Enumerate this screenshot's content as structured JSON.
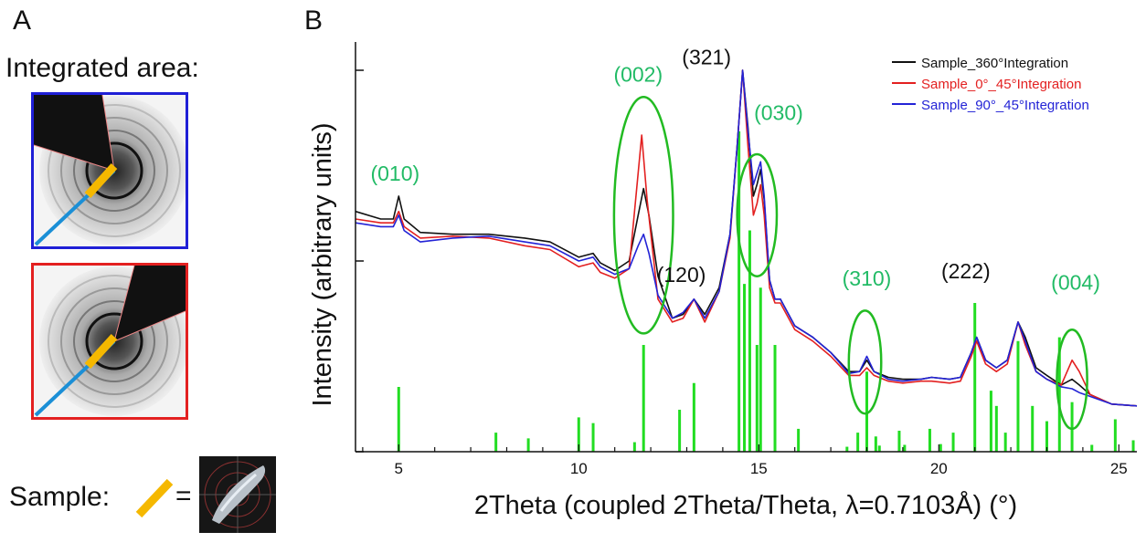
{
  "panel_a": {
    "letter": "A",
    "integrated_label": "Integrated area:",
    "sample_label": "Sample:",
    "equals": "=",
    "box_colors": {
      "top": "#1f1fd6",
      "bottom": "#e32020",
      "stick": "#f5b800",
      "beam": "#1b8fd6"
    }
  },
  "panel_b": {
    "letter": "B"
  },
  "chart_data": {
    "type": "line",
    "xlabel": "2Theta (coupled 2Theta/Theta, λ=0.7103Å) (°)",
    "ylabel": "Intensity (arbitrary units)",
    "xlim": [
      3.8,
      25.5
    ],
    "ylim": [
      0,
      100
    ],
    "x_ticks": [
      5,
      10,
      15,
      20,
      25
    ],
    "x_tick_labels": [
      "5",
      "10",
      "15",
      "20",
      "25"
    ],
    "grid": false,
    "legend_position": "top-right",
    "series": [
      {
        "name": "Sample_360°Integration",
        "color": "#111111",
        "x": [
          3.8,
          4.5,
          4.85,
          5.0,
          5.15,
          5.6,
          6.5,
          7.5,
          8.5,
          9.2,
          10.0,
          10.4,
          10.6,
          11.0,
          11.4,
          11.65,
          11.8,
          11.95,
          12.2,
          12.6,
          12.9,
          13.2,
          13.5,
          13.9,
          14.2,
          14.4,
          14.55,
          14.7,
          14.85,
          14.95,
          15.05,
          15.15,
          15.3,
          15.45,
          15.6,
          16.0,
          16.5,
          17.0,
          17.5,
          17.8,
          18.0,
          18.2,
          18.6,
          19.0,
          19.5,
          19.8,
          20.3,
          20.6,
          20.9,
          21.05,
          21.3,
          21.6,
          21.9,
          22.2,
          22.4,
          22.7,
          23.0,
          23.4,
          23.7,
          23.9,
          24.2,
          24.8,
          25.5
        ],
        "y": [
          63,
          61,
          61,
          67,
          61,
          57.5,
          57,
          57,
          56,
          55,
          51,
          52,
          49.5,
          47.5,
          50,
          62,
          69,
          62,
          46,
          35,
          36,
          40,
          36,
          43,
          57,
          80,
          100,
          85,
          67,
          70,
          74,
          66,
          45,
          40,
          40,
          33,
          30,
          26,
          21,
          21,
          24,
          21,
          19.5,
          19,
          19,
          19.5,
          19,
          19.5,
          26,
          30,
          24,
          22,
          24,
          34,
          30,
          22,
          20,
          17.5,
          19,
          17.5,
          15,
          12.5,
          12
        ]
      },
      {
        "name": "Sample_0°_45°Integration",
        "color": "#e32020",
        "x": [
          3.8,
          4.5,
          4.85,
          5.0,
          5.15,
          5.6,
          6.5,
          7.5,
          8.5,
          9.2,
          10.0,
          10.4,
          10.6,
          11.0,
          11.4,
          11.6,
          11.75,
          11.9,
          12.2,
          12.6,
          12.9,
          13.2,
          13.5,
          13.9,
          14.2,
          14.4,
          14.55,
          14.7,
          14.85,
          14.95,
          15.05,
          15.15,
          15.3,
          15.45,
          15.6,
          16.0,
          16.5,
          17.0,
          17.5,
          17.8,
          18.0,
          18.2,
          18.6,
          19.0,
          19.5,
          19.8,
          20.3,
          20.6,
          20.9,
          21.05,
          21.3,
          21.6,
          21.9,
          22.2,
          22.4,
          22.7,
          23.0,
          23.4,
          23.7,
          23.9,
          24.2,
          24.8,
          25.5
        ],
        "y": [
          61,
          60,
          60,
          63,
          59,
          56,
          56.5,
          56,
          54,
          53,
          48.5,
          49.5,
          47,
          45.5,
          48,
          68,
          83,
          66,
          40,
          34,
          35,
          40,
          34,
          42,
          56,
          80,
          100,
          80,
          62,
          65,
          70,
          62,
          43,
          39,
          39,
          32,
          29,
          25,
          20,
          20,
          22,
          20,
          18.5,
          18,
          18.5,
          18.5,
          18,
          18.5,
          25,
          29,
          23,
          21,
          23,
          34,
          28,
          21,
          19,
          17.5,
          24,
          21,
          15,
          12.5,
          12
        ]
      },
      {
        "name": "Sample_90°_45°Integration",
        "color": "#2323d6",
        "x": [
          3.8,
          4.5,
          4.85,
          5.0,
          5.15,
          5.6,
          6.5,
          7.5,
          8.5,
          9.2,
          10.0,
          10.4,
          10.6,
          11.0,
          11.4,
          11.65,
          11.8,
          11.95,
          12.2,
          12.6,
          12.9,
          13.2,
          13.5,
          13.9,
          14.2,
          14.4,
          14.55,
          14.7,
          14.85,
          14.95,
          15.05,
          15.15,
          15.3,
          15.45,
          15.6,
          16.0,
          16.5,
          17.0,
          17.5,
          17.8,
          18.0,
          18.2,
          18.6,
          19.0,
          19.5,
          19.8,
          20.3,
          20.6,
          20.9,
          21.05,
          21.3,
          21.6,
          21.9,
          22.2,
          22.4,
          22.7,
          23.0,
          23.4,
          23.7,
          23.9,
          24.2,
          24.8,
          25.5
        ],
        "y": [
          60,
          59,
          59,
          62,
          58,
          55,
          56,
          56.5,
          55,
          54,
          50,
          51,
          48.5,
          46.5,
          48,
          54,
          57,
          52,
          41,
          35,
          36.5,
          40,
          35,
          42,
          57,
          80,
          100,
          84,
          70,
          73,
          76,
          67,
          45,
          40,
          40,
          33,
          30,
          26,
          20.5,
          21,
          25,
          21,
          19,
          18.5,
          19,
          19.5,
          19,
          19.5,
          26,
          30,
          24,
          22,
          24,
          34,
          29,
          21,
          19,
          17,
          16.5,
          15.5,
          14.5,
          12.5,
          12
        ]
      }
    ],
    "reference_sticks": {
      "color": "#22dd22",
      "x": [
        5.0,
        7.7,
        8.6,
        10.0,
        10.4,
        11.55,
        11.8,
        12.8,
        13.2,
        14.45,
        14.6,
        14.75,
        14.95,
        15.05,
        15.45,
        16.1,
        17.45,
        17.75,
        18.0,
        18.25,
        18.35,
        18.9,
        19.05,
        19.75,
        20.05,
        20.4,
        21.0,
        21.45,
        21.6,
        21.85,
        22.2,
        22.6,
        23.0,
        23.35,
        23.7,
        24.25,
        24.9,
        25.4
      ],
      "y": [
        17,
        5,
        3.5,
        9,
        7.5,
        2.5,
        28,
        11,
        18,
        84,
        44,
        58,
        28,
        43,
        28,
        6,
        1.3,
        5,
        21,
        4,
        1.6,
        5.5,
        1.8,
        6,
        2,
        5,
        39,
        16,
        12,
        5,
        29,
        12,
        8,
        30,
        13,
        1.8,
        8.5,
        3
      ]
    },
    "annotations": [
      {
        "text": "(010)",
        "x": 4.9,
        "y": 71,
        "color": "#22bb66"
      },
      {
        "text": "(002)",
        "x": 11.65,
        "y": 97,
        "color": "#22bb66"
      },
      {
        "text": "(321)",
        "x": 13.55,
        "y": 101.5,
        "color": "#111111"
      },
      {
        "text": "(030)",
        "x": 15.55,
        "y": 87,
        "color": "#22bb66"
      },
      {
        "text": "(120)",
        "x": 12.85,
        "y": 44.5,
        "color": "#111111"
      },
      {
        "text": "(310)",
        "x": 18.0,
        "y": 43.5,
        "color": "#22bb66"
      },
      {
        "text": "(222)",
        "x": 20.75,
        "y": 45.5,
        "color": "#111111"
      },
      {
        "text": "(004)",
        "x": 23.8,
        "y": 42.5,
        "color": "#22bb66"
      }
    ],
    "highlight_ellipses": [
      {
        "cx": 11.8,
        "cy": 62,
        "rx": 0.82,
        "ry": 31
      },
      {
        "cx": 14.95,
        "cy": 62,
        "rx": 0.55,
        "ry": 16
      },
      {
        "cx": 17.95,
        "cy": 23.5,
        "rx": 0.45,
        "ry": 13.5
      },
      {
        "cx": 23.7,
        "cy": 19,
        "rx": 0.42,
        "ry": 13
      }
    ],
    "ellipse_color": "#22bb22"
  }
}
